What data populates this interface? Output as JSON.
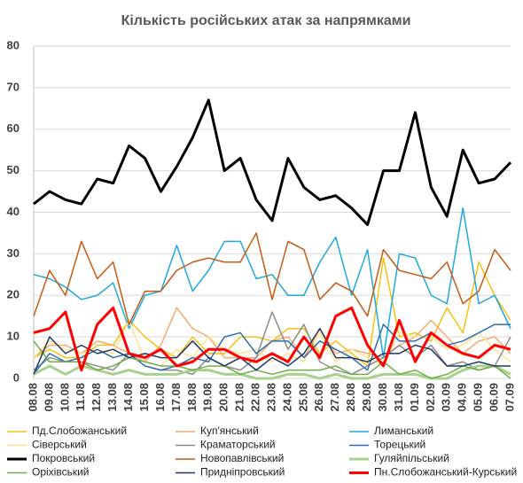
{
  "chart_data": {
    "type": "line",
    "title": "Кількість російських атак за напрямками",
    "categories": [
      "08.08",
      "09.08",
      "10.08",
      "11.08",
      "12.08",
      "13.08",
      "14.08",
      "15.08",
      "16.08",
      "17.08",
      "18.08",
      "19.08",
      "20.08",
      "21.08",
      "22.08",
      "23.08",
      "24.08",
      "25.08",
      "26.08",
      "27.08",
      "28.08",
      "29.08",
      "30.08",
      "31.08",
      "01.09",
      "02.09",
      "03.09",
      "04.09",
      "05.09",
      "06.09",
      "07.09"
    ],
    "ylim": [
      0,
      80
    ],
    "yticks": [
      0,
      10,
      20,
      30,
      40,
      50,
      60,
      70,
      80
    ],
    "grid": true,
    "series": [
      {
        "name": "Пд.Слобожанський",
        "color": "#f2c314",
        "line_width": 1.5,
        "values": [
          5,
          7,
          5,
          5,
          8,
          8,
          14,
          10,
          7,
          5,
          10,
          6,
          6,
          10,
          10,
          9,
          12,
          12,
          6,
          9,
          6,
          3,
          29,
          10,
          11,
          9,
          17,
          11,
          28,
          20,
          14
        ]
      },
      {
        "name": "Куп'янський",
        "color": "#f4a96e",
        "line_width": 1.5,
        "values": [
          5,
          8,
          8,
          6,
          9,
          8,
          6,
          4,
          8,
          17,
          12,
          10,
          5,
          5,
          5,
          9,
          10,
          5,
          12,
          6,
          7,
          6,
          5,
          8,
          10,
          14,
          10,
          6,
          9,
          10,
          6
        ]
      },
      {
        "name": "Лиманський",
        "color": "#1ca9dc",
        "line_width": 1.5,
        "values": [
          25,
          24,
          22,
          19,
          20,
          23,
          12,
          20,
          21,
          32,
          21,
          26,
          33,
          33,
          24,
          25,
          20,
          20,
          28,
          34,
          20,
          31,
          5,
          30,
          29,
          20,
          18,
          41,
          18,
          20,
          12
        ]
      },
      {
        "name": "Сіверський",
        "color": "#fde38c",
        "line_width": 1.5,
        "values": [
          5,
          9,
          7,
          6,
          7,
          6,
          14,
          4,
          3,
          7,
          5,
          10,
          7,
          6,
          7,
          4,
          6,
          4,
          11,
          4,
          7,
          5,
          3,
          11,
          10,
          10,
          7,
          8,
          11,
          7,
          4
        ]
      },
      {
        "name": "Краматорський",
        "color": "#8c8c8c",
        "line_width": 1.5,
        "values": [
          2,
          5,
          4,
          4,
          3,
          2,
          6,
          3,
          2,
          2,
          1,
          5,
          3,
          2,
          5,
          16,
          7,
          13,
          4,
          2,
          1,
          3,
          5,
          8,
          5,
          8,
          3,
          4,
          2,
          3,
          10
        ]
      },
      {
        "name": "Торецький",
        "color": "#2e6fb0",
        "line_width": 1.5,
        "values": [
          1,
          6,
          4,
          5,
          7,
          5,
          6,
          3,
          2,
          3,
          5,
          4,
          10,
          11,
          6,
          9,
          9,
          5,
          9,
          7,
          5,
          2,
          13,
          9,
          9,
          11,
          8,
          9,
          11,
          13,
          13
        ]
      },
      {
        "name": "Покровський",
        "color": "#000000",
        "line_width": 3,
        "values": [
          42,
          45,
          43,
          42,
          48,
          47,
          56,
          53,
          45,
          51,
          58,
          67,
          50,
          53,
          43,
          38,
          53,
          46,
          43,
          44,
          41,
          37,
          50,
          50,
          64,
          46,
          39,
          55,
          47,
          48,
          52
        ]
      },
      {
        "name": "Новопавлівський",
        "color": "#c55a11",
        "line_width": 1.5,
        "values": [
          15,
          26,
          20,
          33,
          24,
          28,
          13,
          21,
          21,
          26,
          28,
          29,
          28,
          28,
          35,
          19,
          33,
          31,
          19,
          23,
          21,
          15,
          31,
          26,
          25,
          24,
          28,
          18,
          21,
          31,
          26
        ]
      },
      {
        "name": "Гуляйпільський",
        "color": "#a9d18e",
        "line_width": 3,
        "values": [
          1,
          3,
          1,
          3,
          2,
          1,
          2,
          1,
          1,
          1,
          2,
          2,
          1,
          1,
          0,
          0,
          1,
          1,
          0,
          1,
          0,
          0,
          1,
          1,
          1,
          0,
          0,
          2,
          3,
          3,
          1
        ]
      },
      {
        "name": "Оріхівський",
        "color": "#70ad47",
        "line_width": 1.5,
        "values": [
          9,
          4,
          4,
          4,
          2,
          3,
          5,
          4,
          3,
          3,
          2,
          3,
          3,
          1,
          2,
          1,
          2,
          2,
          2,
          3,
          1,
          1,
          4,
          1,
          2,
          0,
          1,
          3,
          2,
          3,
          0
        ]
      },
      {
        "name": "Придніпровський",
        "color": "#203864",
        "line_width": 1.5,
        "values": [
          1,
          10,
          6,
          8,
          6,
          7,
          5,
          6,
          5,
          5,
          9,
          5,
          3,
          5,
          2,
          5,
          3,
          6,
          12,
          5,
          5,
          4,
          6,
          6,
          8,
          7,
          3,
          3,
          4,
          3,
          3
        ]
      },
      {
        "name": "Пн.Слобожанський-Курський",
        "color": "#ff0000",
        "line_width": 3,
        "values": [
          11,
          12,
          16,
          2,
          13,
          17,
          6,
          5,
          7,
          3,
          4,
          7,
          7,
          5,
          4,
          6,
          4,
          10,
          5,
          15,
          17,
          8,
          3,
          14,
          4,
          11,
          8,
          6,
          5,
          8,
          7
        ]
      }
    ]
  }
}
